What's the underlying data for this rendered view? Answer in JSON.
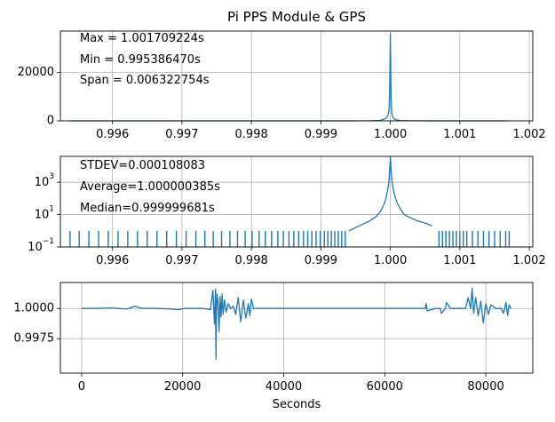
{
  "chart_data": [
    {
      "type": "line",
      "title": "Pi PPS Module & GPS",
      "xlabel": "",
      "ylabel": "",
      "xlim": [
        0.99525,
        1.00205
      ],
      "ylim": [
        0,
        37000
      ],
      "grid": true,
      "x_ticks": [
        "0.996",
        "0.997",
        "0.998",
        "0.999",
        "1.000",
        "1.001",
        "1.002"
      ],
      "y_ticks": [
        "0",
        "20000"
      ],
      "annotations": [
        "Max = 1.001709224s",
        "Min = 0.995386470s",
        "Span = 0.006322754s"
      ],
      "series": [
        {
          "x": [
            0.995386,
            0.9994,
            0.9997,
            0.99985,
            0.99993,
            0.99996,
            0.99998,
            0.99999,
            1.0,
            1.00001,
            1.00002,
            1.00004,
            1.00007,
            1.00015,
            1.0003,
            1.0006,
            1.0017
          ],
          "y": [
            0,
            0,
            50,
            200,
            900,
            1800,
            4500,
            12000,
            36000,
            9000,
            3000,
            1200,
            500,
            150,
            30,
            0,
            0
          ]
        }
      ]
    },
    {
      "type": "line",
      "title": "",
      "xlabel": "",
      "ylabel": "",
      "yscale": "log",
      "xlim": [
        0.99525,
        1.00205
      ],
      "ylim": [
        0.1,
        40000
      ],
      "grid": true,
      "x_ticks": [
        "0.996",
        "0.997",
        "0.998",
        "0.999",
        "1.000",
        "1.001",
        "1.002"
      ],
      "y_ticks": [
        "10^-1",
        "10^1",
        "10^3"
      ],
      "annotations": [
        "STDEV=0.000108083",
        "Average=1.000000385s",
        "Median=0.999999681s"
      ],
      "series": [
        {
          "x": [
            0.9994,
            0.99955,
            0.9997,
            0.9998,
            0.99985,
            0.9999,
            0.99993,
            0.99996,
            0.99998,
            1.0,
            1.00002,
            1.00004,
            1.00007,
            1.0001,
            1.00015,
            1.0002,
            1.0003,
            1.0004,
            1.0005,
            1.0006
          ],
          "y": [
            1,
            2,
            4,
            8,
            14,
            35,
            80,
            300,
            1200,
            36000,
            1500,
            400,
            120,
            50,
            20,
            10,
            6,
            4,
            3,
            2
          ]
        }
      ],
      "sparse_counts_x": [
        0.99539,
        0.99552,
        0.99566,
        0.9958,
        0.99594,
        0.99608,
        0.99622,
        0.99636,
        0.9965,
        0.99664,
        0.99678,
        0.99692,
        0.99706,
        0.9972,
        0.99733,
        0.99745,
        0.99757,
        0.99769,
        0.9978,
        0.99791,
        0.99801,
        0.99811,
        0.9982,
        0.99829,
        0.99838,
        0.99846,
        0.99854,
        0.99861,
        0.99868,
        0.99875,
        0.99881,
        0.99887,
        0.99893,
        0.99899,
        0.99905,
        0.9991,
        0.99915,
        0.9992,
        0.99925,
        0.9993,
        0.99935,
        1.0007,
        1.00075,
        1.0008,
        1.00085,
        1.0009,
        1.00095,
        1.001,
        1.00105,
        1.0011,
        1.00118,
        1.00126,
        1.00134,
        1.00142,
        1.0015,
        1.00158,
        1.00166,
        1.00171
      ],
      "sparse_counts_y": 1
    },
    {
      "type": "line",
      "title": "",
      "xlabel": "Seconds",
      "ylabel": "",
      "xlim": [
        -4200,
        89300
      ],
      "ylim": [
        0.99465,
        1.00215
      ],
      "grid": true,
      "x_ticks": [
        "0",
        "20000",
        "40000",
        "60000",
        "80000"
      ],
      "y_ticks": [
        "0.9975",
        "1.0000"
      ],
      "series": [
        {
          "x": [
            0,
            3000,
            6000,
            9000,
            10000,
            10500,
            12000,
            15000,
            18000,
            19000,
            20500,
            22000,
            24000,
            25500,
            26000,
            26300,
            26500,
            26600,
            26700,
            26800,
            27000,
            27200,
            27400,
            27600,
            27800,
            28000,
            28300,
            28600,
            29000,
            29500,
            30000,
            30500,
            31000,
            31500,
            32000,
            32500,
            33000,
            33300,
            33600,
            34000,
            34500,
            35000,
            40000,
            45000,
            50000,
            55000,
            60000,
            63000,
            66000,
            68000,
            68200,
            68400,
            70000,
            71000,
            71200,
            72000,
            72200,
            73000,
            75000,
            76000,
            76500,
            77000,
            77300,
            77600,
            78000,
            78500,
            79000,
            79500,
            80000,
            80500,
            81000,
            82000,
            83000,
            83500,
            84000,
            84300,
            84600,
            85000
          ],
          "y": [
            1.0,
            1.0,
            1.00005,
            0.99995,
            1.0001,
            1.0002,
            1.0,
            1.0,
            0.99995,
            0.9999,
            1.0,
            1.0,
            1.0,
            0.9999,
            1.0015,
            0.9987,
            1.0016,
            0.9958,
            0.9998,
            1.0012,
            1.0005,
            0.9981,
            1.001,
            0.9993,
            1.0012,
            0.9995,
            1.0007,
            0.9997,
            1.0004,
            1.0,
            1.0002,
            0.9995,
            1.0009,
            0.9989,
            1.0007,
            0.9992,
            1.0004,
            0.9994,
            1.0008,
            1.0,
            1.0,
            1.0,
            1.0,
            1.0,
            1.0,
            1.0,
            1.0,
            1.0,
            1.0,
            1.0,
            1.0004,
            0.9998,
            1.0,
            1.0,
            0.9996,
            1.0,
            1.0005,
            1.0,
            1.0,
            1.0,
            1.0009,
            1.0,
            1.0017,
            0.9996,
            1.0009,
            0.9994,
            1.0006,
            0.9988,
            1.0004,
            0.9995,
            1.0003,
            1.0,
            1.0,
            0.9996,
            1.0005,
            0.9994,
            1.0003,
            1.0
          ]
        }
      ]
    }
  ]
}
